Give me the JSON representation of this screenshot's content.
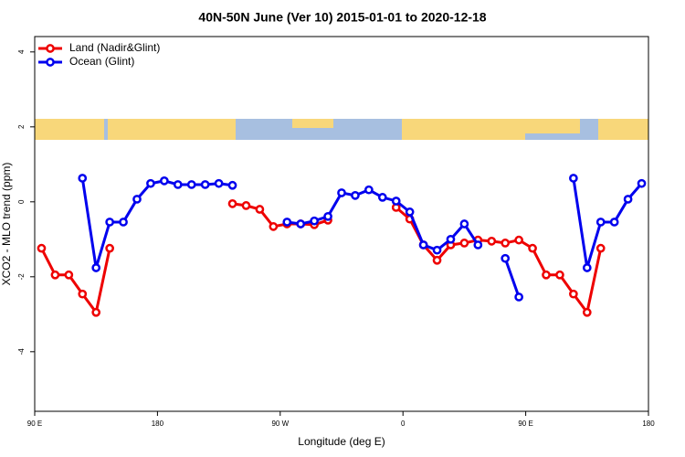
{
  "chart_data": {
    "type": "line",
    "title": "40N-50N June (Ver 10)   2015-01-01 to 2020-12-18",
    "x_label": "Longitude (deg E)",
    "y_label": "XCO2 - MLO trend (ppm)",
    "x": [
      95,
      105,
      115,
      125,
      135,
      145,
      155,
      165,
      175,
      185,
      195,
      205,
      215,
      225,
      235,
      245,
      255,
      265,
      275,
      285,
      295,
      305,
      315,
      325,
      335,
      345,
      355,
      365,
      375,
      385,
      395,
      405,
      415,
      425,
      435,
      445,
      455,
      465,
      475,
      485,
      495,
      505,
      515,
      525,
      535
    ],
    "series": [
      {
        "name": "Land (Nadir&Glint)",
        "color": "#ee0000",
        "values": [
          -1.24,
          -1.95,
          -1.95,
          -2.46,
          -2.95,
          -1.24,
          null,
          null,
          null,
          null,
          null,
          null,
          null,
          null,
          -0.05,
          -0.1,
          -0.2,
          -0.66,
          -0.59,
          -0.59,
          -0.61,
          -0.49,
          null,
          null,
          null,
          null,
          -0.15,
          -0.46,
          -1.15,
          -1.56,
          -1.15,
          -1.1,
          -1.02,
          -1.05,
          -1.1,
          -1.02,
          -1.24,
          -1.95,
          -1.95,
          -2.46,
          -2.95,
          -1.24,
          null,
          null,
          null
        ]
      },
      {
        "name": "Ocean (Glint)",
        "color": "#0000ee",
        "values": [
          null,
          null,
          null,
          0.63,
          -1.76,
          -0.54,
          -0.54,
          0.07,
          0.49,
          0.56,
          0.46,
          0.46,
          0.46,
          0.49,
          0.44,
          null,
          null,
          null,
          -0.54,
          -0.59,
          -0.51,
          -0.39,
          0.24,
          0.17,
          0.32,
          0.12,
          0.02,
          -0.27,
          -1.15,
          -1.29,
          -1.0,
          -0.59,
          -1.15,
          null,
          -1.51,
          -2.54,
          null,
          null,
          null,
          0.63,
          -1.76,
          -0.54,
          -0.54,
          0.07,
          0.49
        ]
      }
    ],
    "xlim": [
      90,
      540
    ],
    "xticks": [
      {
        "value": 90,
        "label": "90 E"
      },
      180,
      {
        "value": 270,
        "label": "90 W"
      },
      {
        "value": 360,
        "label": "0"
      },
      {
        "value": 450,
        "label": "90 E"
      },
      {
        "value": 540,
        "label": "180"
      }
    ],
    "ylim": [
      -5.59,
      4.41
    ],
    "yticks": [
      -4,
      -2,
      0,
      2,
      4
    ],
    "legend": "top-left"
  }
}
